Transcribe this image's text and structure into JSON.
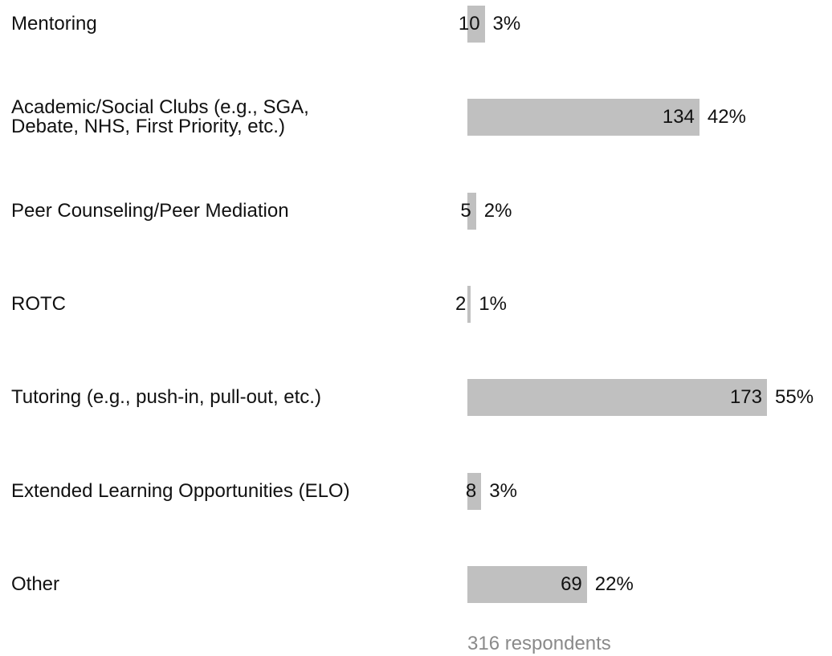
{
  "chart_data": {
    "type": "bar",
    "orientation": "horizontal",
    "categories": [
      "Mentoring",
      "Academic/Social Clubs (e.g., SGA,\nDebate, NHS, First Priority, etc.)",
      "Peer Counseling/Peer Mediation",
      "ROTC",
      "Tutoring (e.g., push-in, pull-out, etc.)",
      "Extended Learning Opportunities (ELO)",
      "Other"
    ],
    "values": [
      10,
      134,
      5,
      2,
      173,
      8,
      69
    ],
    "percent_labels": [
      "3%",
      "42%",
      "2%",
      "1%",
      "55%",
      "3%",
      "22%"
    ],
    "color": "#c0c0c0",
    "footer": "316 respondents"
  }
}
